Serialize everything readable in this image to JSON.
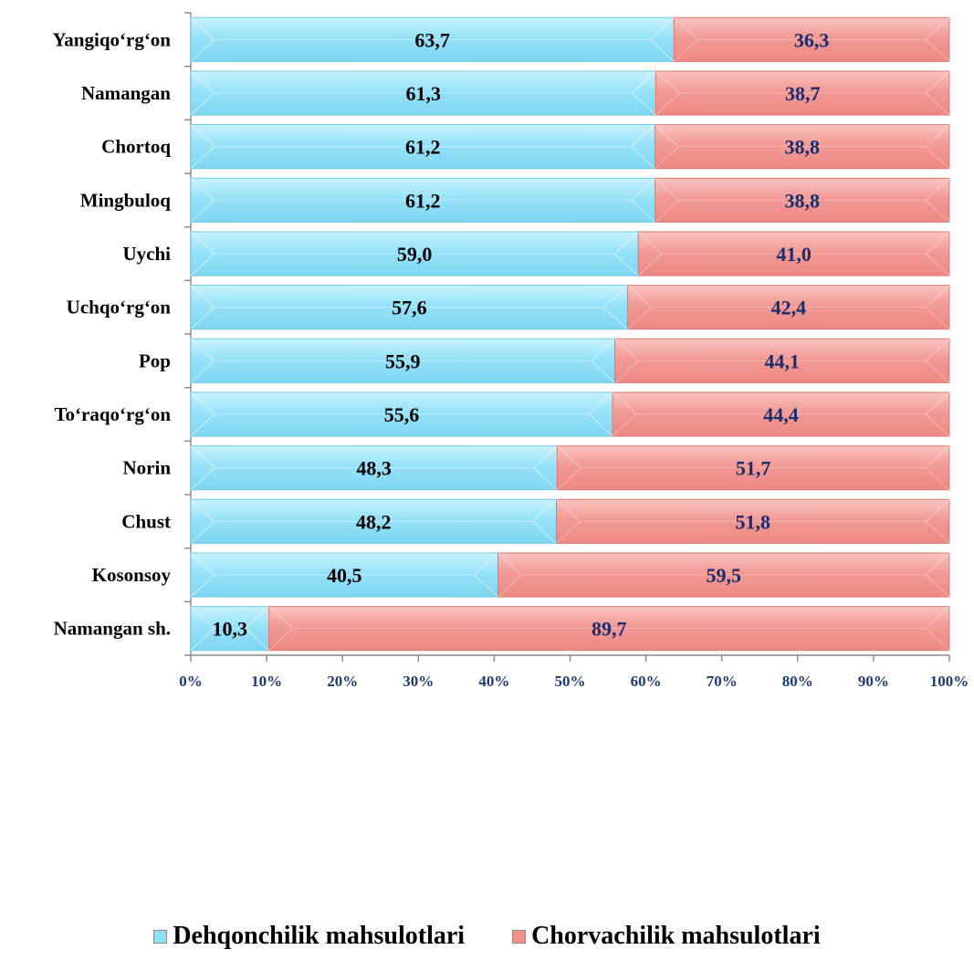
{
  "chart_data": {
    "type": "bar",
    "orientation": "horizontal",
    "stacked": true,
    "percent_stacked": true,
    "categories": [
      "Yangiqo‘rg‘on",
      "Namangan",
      "Chortoq",
      "Mingbuloq",
      "Uychi",
      "Uchqo‘rg‘on",
      "Pop",
      "To‘raqo‘rg‘on",
      "Norin",
      "Chust",
      "Kosonsoy",
      "Namangan sh."
    ],
    "value_labels": [
      [
        "63,7",
        "61,3",
        "61,2",
        "61,2",
        "59,0",
        "57,6",
        "55,9",
        "55,6",
        "48,3",
        "48,2",
        "40,5",
        "10,3"
      ],
      [
        "36,3",
        "38,7",
        "38,8",
        "38,8",
        "41,0",
        "42,4",
        "44,1",
        "44,4",
        "51,7",
        "51,8",
        "59,5",
        "89,7"
      ]
    ],
    "series": [
      {
        "name": "Dehqonchilik mahsulotlari",
        "color": "#8fdff7",
        "label_color": "#000000",
        "values": [
          63.7,
          61.3,
          61.2,
          61.2,
          59.0,
          57.6,
          55.9,
          55.6,
          48.3,
          48.2,
          40.5,
          10.3
        ]
      },
      {
        "name": "Chorvachilik mahsulotlari",
        "color": "#f4908c",
        "label_color": "#1a2c6b",
        "values": [
          36.3,
          38.7,
          38.8,
          38.8,
          41.0,
          42.4,
          44.1,
          44.4,
          51.7,
          51.8,
          59.5,
          89.7
        ]
      }
    ],
    "x_ticks": [
      "0%",
      "10%",
      "20%",
      "30%",
      "40%",
      "50%",
      "60%",
      "70%",
      "80%",
      "90%",
      "100%"
    ],
    "xlim": [
      0,
      100
    ],
    "grid": false,
    "legend_position": "bottom",
    "title": "",
    "xlabel": "",
    "ylabel": ""
  }
}
